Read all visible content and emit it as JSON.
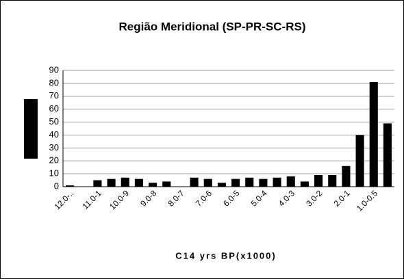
{
  "chart_data": {
    "type": "bar",
    "title": "Região Meridional (SP-PR-SC-RS)",
    "x_label": "C14 yrs BP(x1000)",
    "categories": [
      "12.0-..",
      null,
      "11.0-1",
      null,
      "10.0-9",
      null,
      "9.0-8",
      null,
      "8.0-7",
      null,
      "7.0-6",
      null,
      "6.0-5",
      null,
      "5.0-4",
      null,
      "4.0-3",
      null,
      "3.0-2",
      null,
      "2.0-1",
      null,
      "1.0-0.5",
      null
    ],
    "values": [
      1,
      0,
      5,
      6,
      7,
      6,
      3,
      4,
      0,
      7,
      6,
      3,
      6,
      7,
      6,
      7,
      8,
      4,
      9,
      9,
      16,
      40,
      81,
      49
    ],
    "color": "#000000",
    "ylim": [
      0,
      90
    ],
    "yticks": [
      0,
      10,
      20,
      30,
      40,
      50,
      60,
      70,
      80,
      90
    ],
    "grid": true
  }
}
